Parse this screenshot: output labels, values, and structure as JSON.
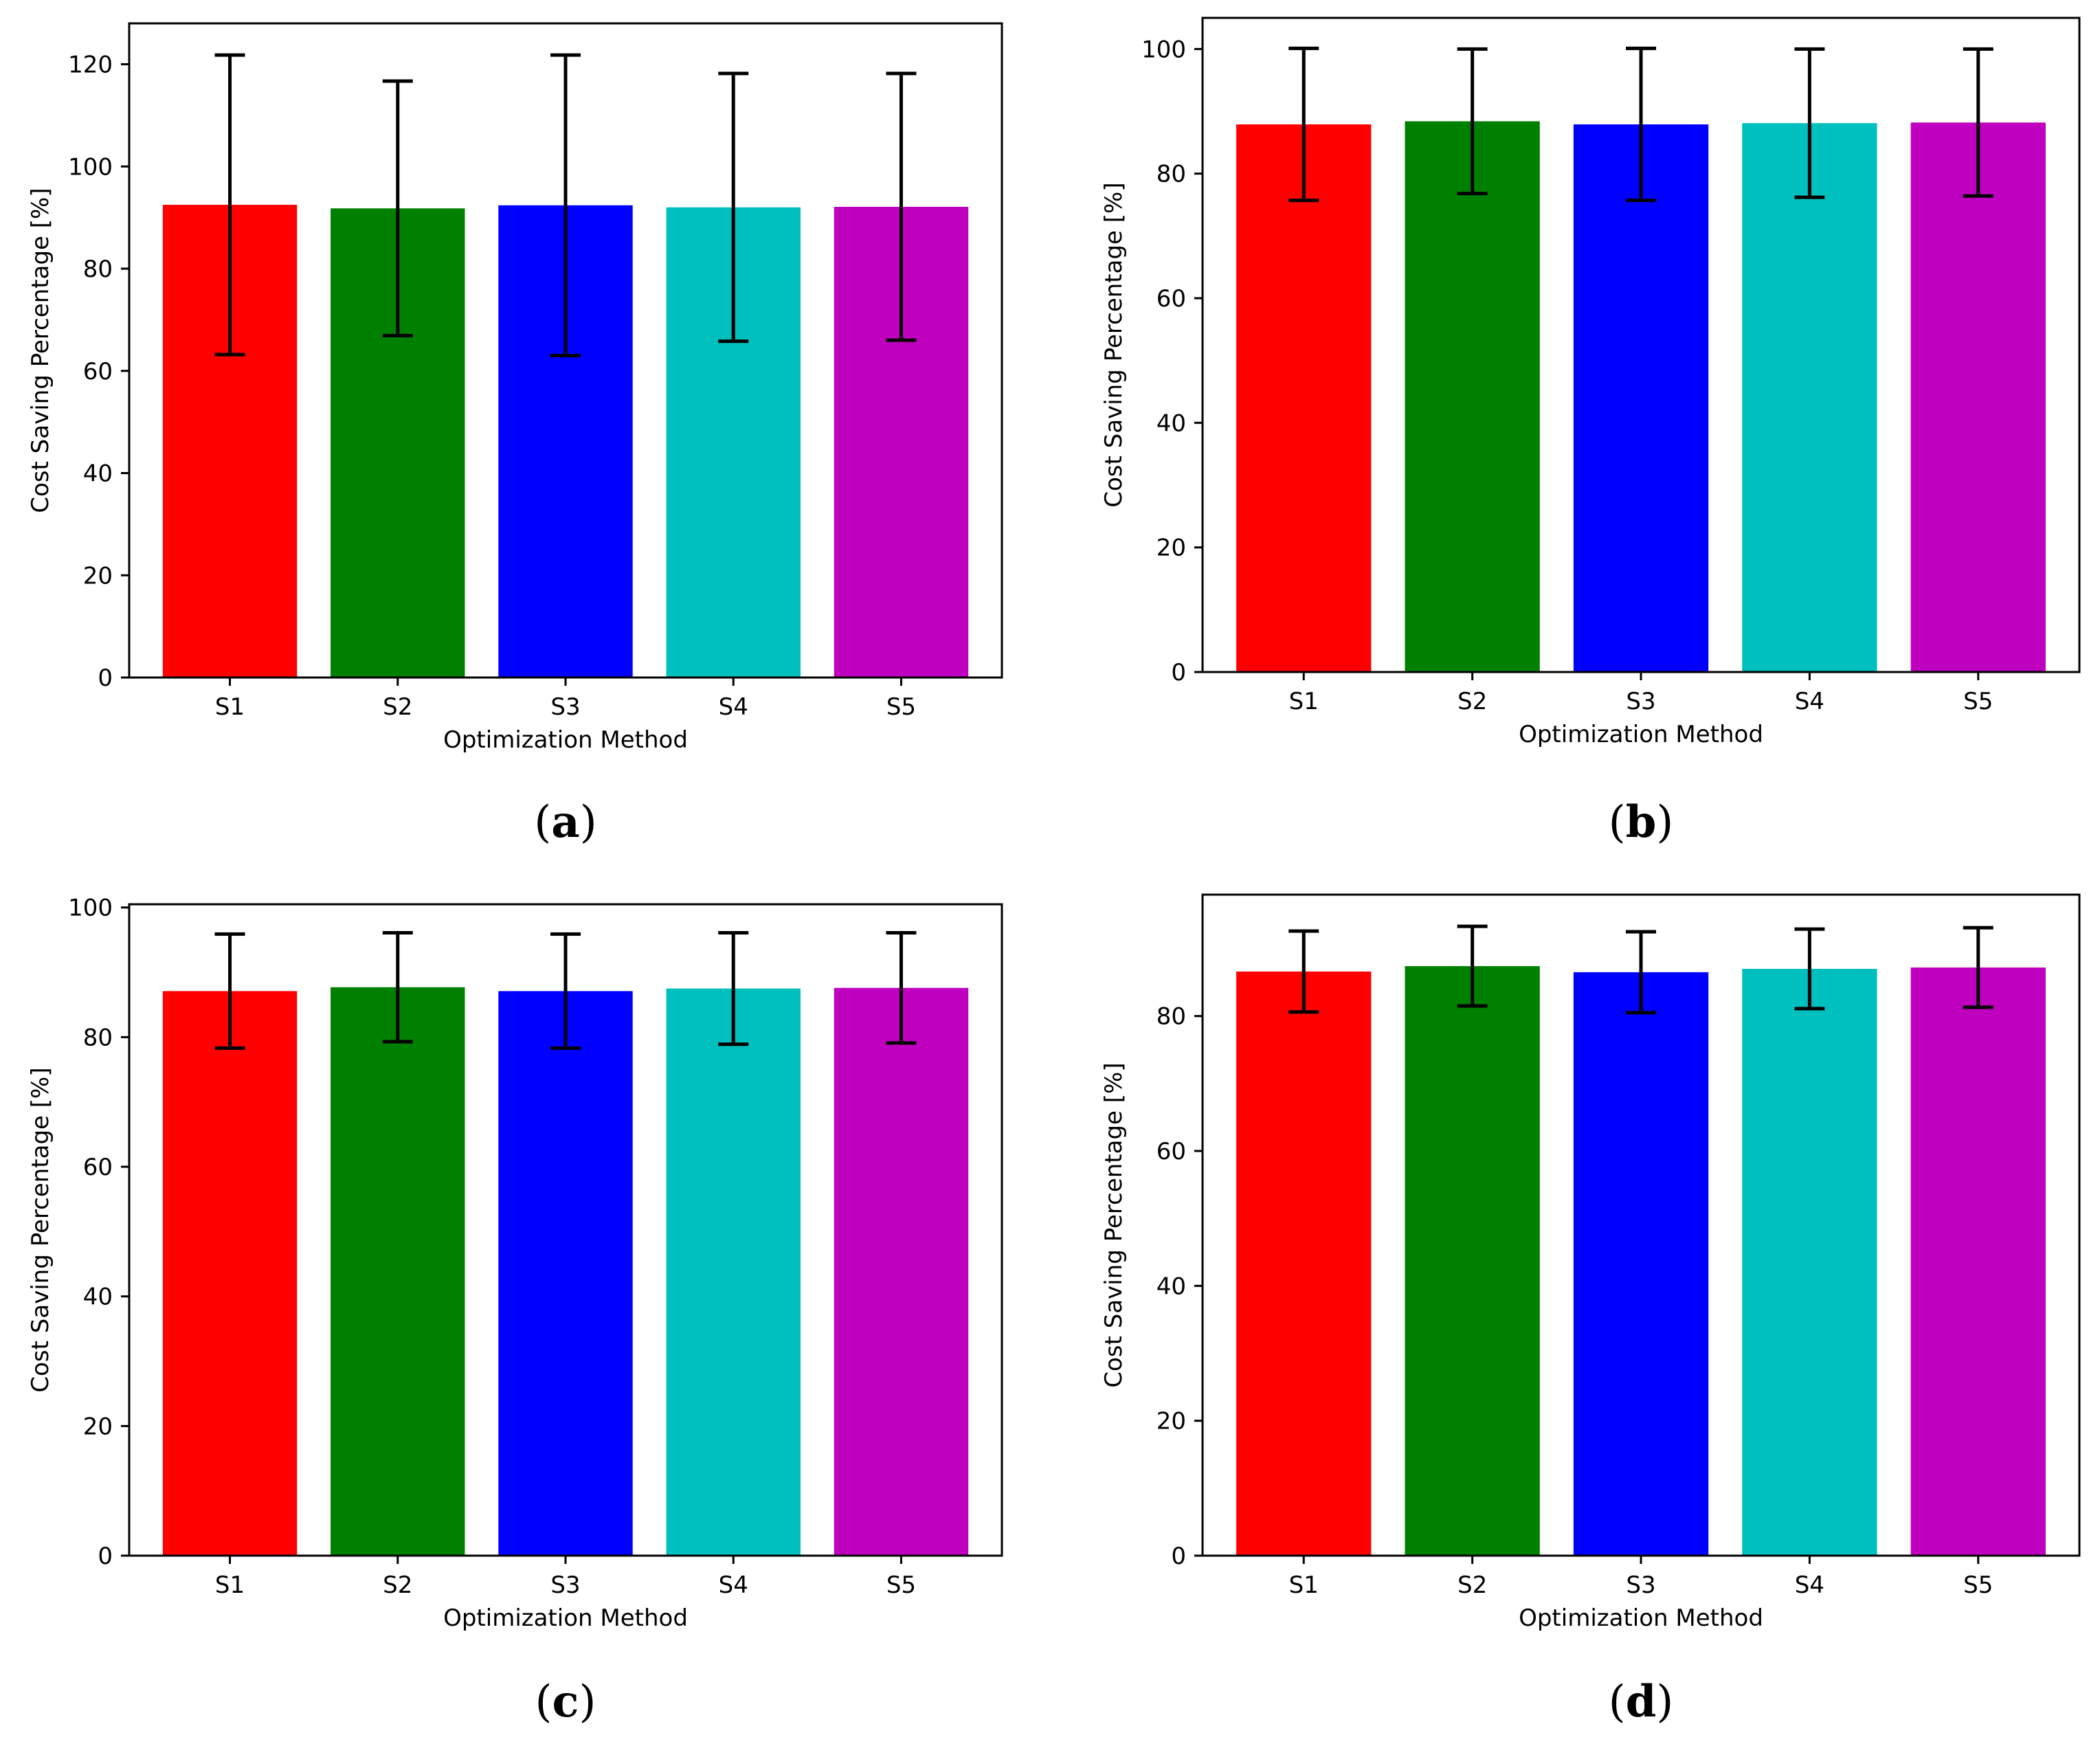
{
  "chart_data": [
    {
      "panel": "(a)",
      "panel_letter": "a",
      "type": "bar",
      "categories": [
        "S1",
        "S2",
        "S3",
        "S4",
        "S5"
      ],
      "values": [
        92.5,
        91.8,
        92.4,
        92.0,
        92.1
      ],
      "errors": [
        29.3,
        24.9,
        29.4,
        26.2,
        26.1
      ],
      "colors": [
        "#ff0000",
        "#008000",
        "#0000ff",
        "#00bfbf",
        "#bf00bf"
      ],
      "title": "",
      "xlabel": "Optimization Method",
      "ylabel": "Cost Saving Percentage [%]",
      "ylim": [
        0,
        128
      ],
      "yticks": [
        0,
        20,
        40,
        60,
        80,
        100,
        120
      ],
      "grid": false
    },
    {
      "panel": "(b)",
      "panel_letter": "b",
      "type": "bar",
      "categories": [
        "S1",
        "S2",
        "S3",
        "S4",
        "S5"
      ],
      "values": [
        87.9,
        88.4,
        87.9,
        88.1,
        88.2
      ],
      "errors": [
        12.2,
        11.6,
        12.2,
        11.9,
        11.8
      ],
      "colors": [
        "#ff0000",
        "#008000",
        "#0000ff",
        "#00bfbf",
        "#bf00bf"
      ],
      "title": "",
      "xlabel": "Optimization Method",
      "ylabel": "Cost Saving Percentage [%]",
      "ylim": [
        0,
        105
      ],
      "yticks": [
        0,
        20,
        40,
        60,
        80,
        100
      ],
      "grid": false
    },
    {
      "panel": "(c)",
      "panel_letter": "c",
      "type": "bar",
      "categories": [
        "S1",
        "S2",
        "S3",
        "S4",
        "S5"
      ],
      "values": [
        87.1,
        87.7,
        87.1,
        87.5,
        87.6
      ],
      "errors": [
        8.8,
        8.4,
        8.8,
        8.6,
        8.5
      ],
      "colors": [
        "#ff0000",
        "#008000",
        "#0000ff",
        "#00bfbf",
        "#bf00bf"
      ],
      "title": "",
      "xlabel": "Optimization Method",
      "ylabel": "Cost Saving Percentage [%]",
      "ylim": [
        0,
        100.5
      ],
      "yticks": [
        0,
        20,
        40,
        60,
        80,
        100
      ],
      "grid": false
    },
    {
      "panel": "(d)",
      "panel_letter": "d",
      "type": "bar",
      "categories": [
        "S1",
        "S2",
        "S3",
        "S4",
        "S5"
      ],
      "values": [
        86.6,
        87.4,
        86.5,
        87.0,
        87.2
      ],
      "errors": [
        6.0,
        5.9,
        6.0,
        5.9,
        5.9
      ],
      "colors": [
        "#ff0000",
        "#008000",
        "#0000ff",
        "#00bfbf",
        "#bf00bf"
      ],
      "title": "",
      "xlabel": "Optimization Method",
      "ylabel": "Cost Saving Percentage [%]",
      "ylim": [
        0,
        98
      ],
      "yticks": [
        0,
        20,
        40,
        60,
        80
      ],
      "grid": false
    }
  ]
}
